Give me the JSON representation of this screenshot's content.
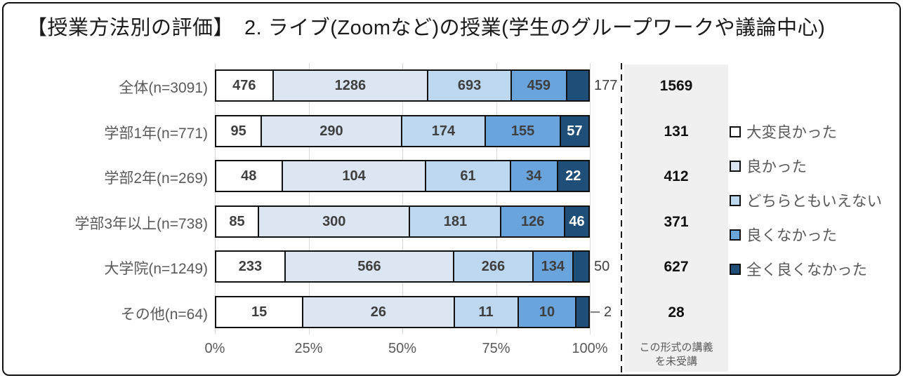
{
  "title": "【授業方法別の評価】　2. ライブ(Zoomなど)の授業(学生のグループワークや議論中心)",
  "colors": {
    "segment_fills": [
      "#ffffff",
      "#dce6f2",
      "#bdd7ee",
      "#69a4dc",
      "#1f4e79"
    ],
    "segment_border": "#111111",
    "value_label_dark": "#3f3f3f",
    "value_label_light": "#ffffff",
    "axis_text": "#595959",
    "gridline": "#d9d9d9",
    "unattended_column_bg": "#f0f0f0",
    "frame_border": "#111111"
  },
  "chart_data": {
    "type": "bar",
    "orientation": "horizontal",
    "stacked": true,
    "title": "【授業方法別の評価】　2. ライブ(Zoomなど)の授業(学生のグループワークや議論中心)",
    "xlabel": "",
    "ylabel": "",
    "x_axis": {
      "ticks": [
        "0%",
        "25%",
        "50%",
        "75%",
        "100%"
      ],
      "range_percent": [
        0,
        100
      ],
      "grid": true
    },
    "legend_position": "right",
    "series_names": [
      "大変良かった",
      "良かった",
      "どちらともいえない",
      "良くなかった",
      "全く良くなかった"
    ],
    "categories": [
      "全体(n=3091)",
      "学部1年(n=771)",
      "学部2年(n=269)",
      "学部3年以上(n=738)",
      "大学院(n=1249)",
      "その他(n=64)"
    ],
    "rows": [
      {
        "label": "全体(n=3091)",
        "values": [
          476,
          1286,
          693,
          459,
          177
        ],
        "not_attended": 1569,
        "last_label_outside": true,
        "callout": false
      },
      {
        "label": "学部1年(n=771)",
        "values": [
          95,
          290,
          174,
          155,
          57
        ],
        "not_attended": 131,
        "last_label_outside": false,
        "callout": false
      },
      {
        "label": "学部2年(n=269)",
        "values": [
          48,
          104,
          61,
          34,
          22
        ],
        "not_attended": 412,
        "last_label_outside": false,
        "callout": false
      },
      {
        "label": "学部3年以上(n=738)",
        "values": [
          85,
          300,
          181,
          126,
          46
        ],
        "not_attended": 371,
        "last_label_outside": false,
        "callout": false
      },
      {
        "label": "大学院(n=1249)",
        "values": [
          233,
          566,
          266,
          134,
          50
        ],
        "not_attended": 627,
        "last_label_outside": true,
        "callout": false
      },
      {
        "label": "その他(n=64)",
        "values": [
          15,
          26,
          11,
          10,
          2
        ],
        "not_attended": 28,
        "last_label_outside": true,
        "callout": true
      }
    ],
    "legend": [
      {
        "label": "大変良かった",
        "color": "#ffffff"
      },
      {
        "label": "良かった",
        "color": "#dce6f2"
      },
      {
        "label": "どちらともいえない",
        "color": "#bdd7ee"
      },
      {
        "label": "良くなかった",
        "color": "#69a4dc"
      },
      {
        "label": "全く良くなかった",
        "color": "#1f4e79"
      }
    ]
  },
  "not_attended_footer": {
    "line1": "この形式の講義",
    "line2": "を未受講"
  }
}
